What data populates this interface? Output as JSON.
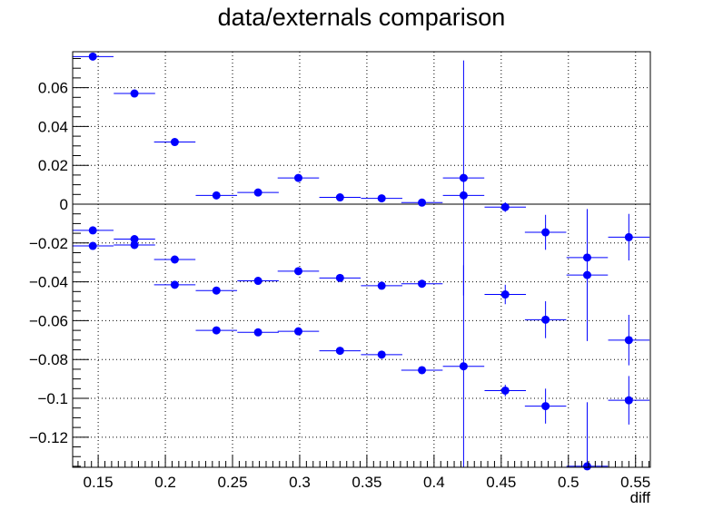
{
  "chart_data": {
    "type": "scatter",
    "title": "data/externals comparison",
    "xlabel": "diff",
    "ylabel": "",
    "xlim": [
      0.131,
      0.561
    ],
    "ylim": [
      -0.1355,
      0.0785
    ],
    "grid": true,
    "legend": "none",
    "marker_color": "#0000ff",
    "x_ticks": [
      0.15,
      0.2,
      0.25,
      0.3,
      0.35,
      0.4,
      0.45,
      0.5,
      0.55
    ],
    "x_tick_labels": [
      "0.15",
      "0.2",
      "0.25",
      "0.3",
      "0.35",
      "0.4",
      "0.45",
      "0.5",
      "0.55"
    ],
    "y_ticks": [
      0.06,
      0.04,
      0.02,
      0,
      -0.02,
      -0.04,
      -0.06,
      -0.08,
      -0.1,
      -0.12
    ],
    "y_tick_labels": [
      "0.06",
      "0.04",
      "0.02",
      "0",
      "−0.02",
      "−0.04",
      "−0.06",
      "−0.08",
      "−0.1",
      "−0.12"
    ],
    "reference_line_y": 0,
    "bin_half_width": 0.0154,
    "series": [
      {
        "points": [
          {
            "x": 0.146,
            "y": 0.076,
            "yerr": 0.0
          },
          {
            "x": 0.177,
            "y": 0.057,
            "yerr": 0.0
          },
          {
            "x": 0.207,
            "y": 0.032,
            "yerr": 0.0
          },
          {
            "x": 0.238,
            "y": 0.0045,
            "yerr": 0.0
          },
          {
            "x": 0.269,
            "y": 0.006,
            "yerr": 0.0
          },
          {
            "x": 0.299,
            "y": 0.0135,
            "yerr": 0.0
          },
          {
            "x": 0.33,
            "y": 0.0035,
            "yerr": 0.0
          },
          {
            "x": 0.361,
            "y": 0.003,
            "yerr": 0.0
          },
          {
            "x": 0.391,
            "y": 0.0008,
            "yerr": 0.0
          },
          {
            "x": 0.422,
            "y": 0.0045,
            "yerr": 0.0
          },
          {
            "x": 0.453,
            "y": -0.0015,
            "yerr": 0.0025
          },
          {
            "x": 0.483,
            "y": -0.0145,
            "yerr": 0.009
          },
          {
            "x": 0.514,
            "y": -0.0365,
            "yerr": 0.034
          },
          {
            "x": 0.545,
            "y": -0.017,
            "yerr": 0.012
          }
        ]
      },
      {
        "points": [
          {
            "x": 0.146,
            "y": -0.0135,
            "yerr": 0.0
          },
          {
            "x": 0.177,
            "y": -0.018,
            "yerr": 0.0
          },
          {
            "x": 0.207,
            "y": -0.0285,
            "yerr": 0.0
          },
          {
            "x": 0.238,
            "y": -0.0445,
            "yerr": 0.0
          },
          {
            "x": 0.269,
            "y": -0.0395,
            "yerr": 0.0
          },
          {
            "x": 0.299,
            "y": -0.0345,
            "yerr": 0.0
          },
          {
            "x": 0.33,
            "y": -0.038,
            "yerr": 0.0
          },
          {
            "x": 0.361,
            "y": -0.042,
            "yerr": 0.0
          },
          {
            "x": 0.391,
            "y": -0.041,
            "yerr": 0.0
          },
          {
            "x": 0.422,
            "y": 0.0135,
            "yerr": 0.0605
          },
          {
            "x": 0.453,
            "y": -0.0465,
            "yerr": 0.005
          },
          {
            "x": 0.483,
            "y": -0.0595,
            "yerr": 0.0095
          },
          {
            "x": 0.514,
            "y": -0.0275,
            "yerr": 0.0
          },
          {
            "x": 0.545,
            "y": -0.07,
            "yerr": 0.013
          }
        ]
      },
      {
        "points": [
          {
            "x": 0.146,
            "y": -0.0215,
            "yerr": 0.0
          },
          {
            "x": 0.177,
            "y": -0.021,
            "yerr": 0.0
          },
          {
            "x": 0.207,
            "y": -0.0415,
            "yerr": 0.0
          },
          {
            "x": 0.238,
            "y": -0.065,
            "yerr": 0.0
          },
          {
            "x": 0.269,
            "y": -0.066,
            "yerr": 0.0
          },
          {
            "x": 0.299,
            "y": -0.0655,
            "yerr": 0.0
          },
          {
            "x": 0.33,
            "y": -0.0755,
            "yerr": 0.0
          },
          {
            "x": 0.361,
            "y": -0.0775,
            "yerr": 0.0
          },
          {
            "x": 0.391,
            "y": -0.0855,
            "yerr": 0.0
          },
          {
            "x": 0.422,
            "y": -0.0835,
            "yerr": 0.052
          },
          {
            "x": 0.453,
            "y": -0.096,
            "yerr": 0.003
          },
          {
            "x": 0.483,
            "y": -0.104,
            "yerr": 0.009
          },
          {
            "x": 0.514,
            "y": -0.135,
            "yerr": 0.033
          },
          {
            "x": 0.545,
            "y": -0.101,
            "yerr": 0.0125
          }
        ]
      }
    ]
  }
}
